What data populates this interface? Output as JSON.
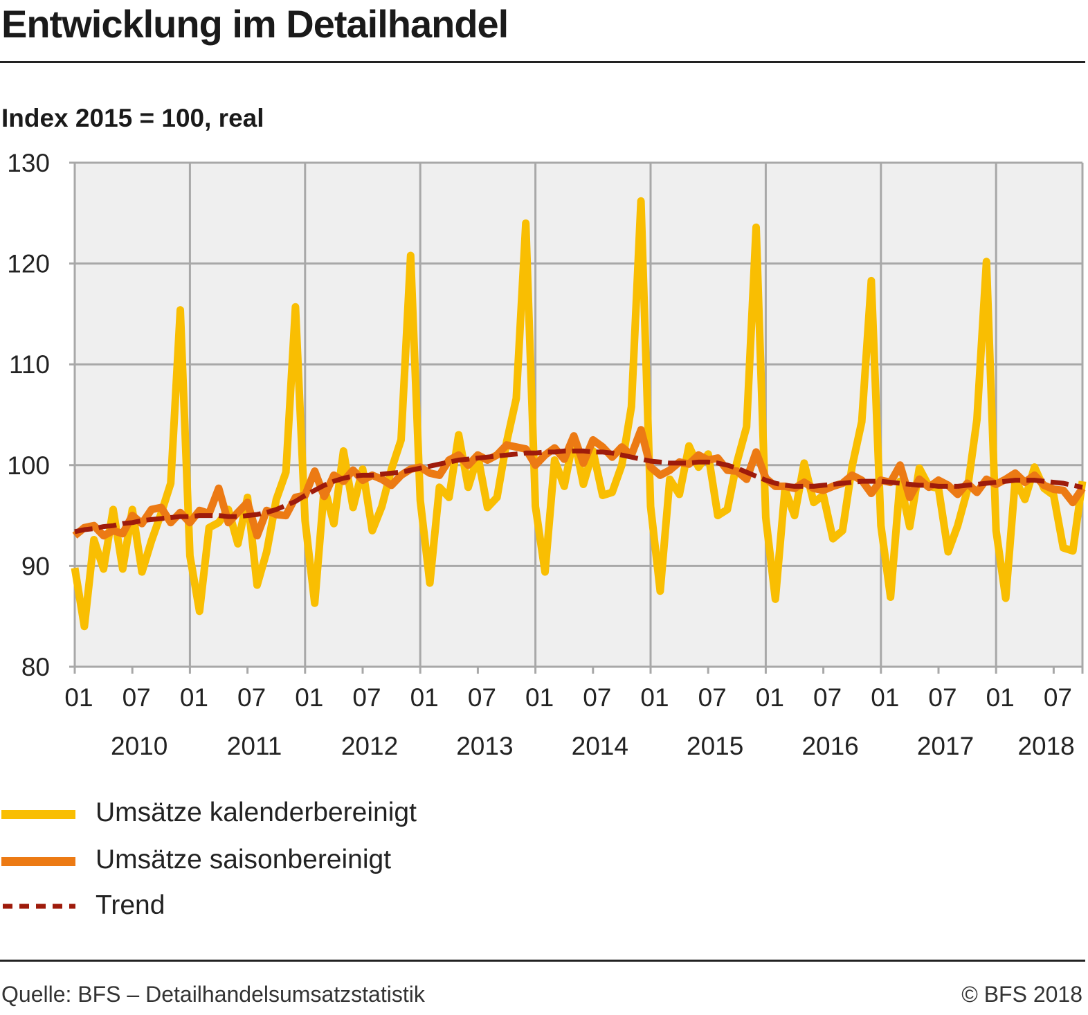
{
  "header": {
    "title": "Entwicklung im Detailhandel",
    "subtitle": "Index 2015 = 100, real"
  },
  "colors": {
    "kalender": "#F9BE02",
    "saison": "#EC7A14",
    "trend": "#9E1B0B",
    "plot_background": "#EFEFEF",
    "grid": "#A8A8A8"
  },
  "chart_data": {
    "type": "line",
    "title": "Entwicklung im Detailhandel",
    "ylabel": "Index 2015 = 100, real",
    "xlabel": "",
    "ylim": [
      80,
      130
    ],
    "yticks": [
      80,
      90,
      100,
      110,
      120,
      130
    ],
    "grid": true,
    "legend_position": "bottom-left",
    "x_tick_labels": [
      "01",
      "07",
      "01",
      "07",
      "01",
      "07",
      "01",
      "07",
      "01",
      "07",
      "01",
      "07",
      "01",
      "07",
      "01",
      "07",
      "01",
      "07"
    ],
    "year_labels": [
      "2010",
      "2011",
      "2012",
      "2013",
      "2014",
      "2015",
      "2016",
      "2017",
      "2018"
    ],
    "x": [
      "2010-01",
      "2010-02",
      "2010-03",
      "2010-04",
      "2010-05",
      "2010-06",
      "2010-07",
      "2010-08",
      "2010-09",
      "2010-10",
      "2010-11",
      "2010-12",
      "2011-01",
      "2011-02",
      "2011-03",
      "2011-04",
      "2011-05",
      "2011-06",
      "2011-07",
      "2011-08",
      "2011-09",
      "2011-10",
      "2011-11",
      "2011-12",
      "2012-01",
      "2012-02",
      "2012-03",
      "2012-04",
      "2012-05",
      "2012-06",
      "2012-07",
      "2012-08",
      "2012-09",
      "2012-10",
      "2012-11",
      "2012-12",
      "2013-01",
      "2013-02",
      "2013-03",
      "2013-04",
      "2013-05",
      "2013-06",
      "2013-07",
      "2013-08",
      "2013-09",
      "2013-10",
      "2013-11",
      "2013-12",
      "2014-01",
      "2014-02",
      "2014-03",
      "2014-04",
      "2014-05",
      "2014-06",
      "2014-07",
      "2014-08",
      "2014-09",
      "2014-10",
      "2014-11",
      "2014-12",
      "2015-01",
      "2015-02",
      "2015-03",
      "2015-04",
      "2015-05",
      "2015-06",
      "2015-07",
      "2015-08",
      "2015-09",
      "2015-10",
      "2015-11",
      "2015-12",
      "2016-01",
      "2016-02",
      "2016-03",
      "2016-04",
      "2016-05",
      "2016-06",
      "2016-07",
      "2016-08",
      "2016-09",
      "2016-10",
      "2016-11",
      "2016-12",
      "2017-01",
      "2017-02",
      "2017-03",
      "2017-04",
      "2017-05",
      "2017-06",
      "2017-07",
      "2017-08",
      "2017-09",
      "2017-10",
      "2017-11",
      "2017-12",
      "2018-01",
      "2018-02",
      "2018-03",
      "2018-04",
      "2018-05",
      "2018-06",
      "2018-07",
      "2018-08",
      "2018-09",
      "2018-10"
    ],
    "series": [
      {
        "name": "Umsätze kalenderbereinigt",
        "color": "#F9BE02",
        "style": "solid",
        "values": [
          89.8,
          84.0,
          92.6,
          89.7,
          95.6,
          89.7,
          95.6,
          89.4,
          92.5,
          95.2,
          98.2,
          115.4,
          91.0,
          85.5,
          93.8,
          94.3,
          95.6,
          92.2,
          96.8,
          88.1,
          91.4,
          96.6,
          99.3,
          115.7,
          94.5,
          86.3,
          97.8,
          94.2,
          101.4,
          95.8,
          99.6,
          93.5,
          95.9,
          99.6,
          102.5,
          120.8,
          96.5,
          88.3,
          97.8,
          96.8,
          103.0,
          97.8,
          100.9,
          95.8,
          96.8,
          102.3,
          106.6,
          124.0,
          95.9,
          89.4,
          100.5,
          97.9,
          102.8,
          98.1,
          101.4,
          97.0,
          97.3,
          100.0,
          105.8,
          126.2,
          95.9,
          87.5,
          98.6,
          97.1,
          101.9,
          99.8,
          101.1,
          95.0,
          95.6,
          100.3,
          103.8,
          123.6,
          94.8,
          86.7,
          97.6,
          95.0,
          100.2,
          96.3,
          97.0,
          92.7,
          93.5,
          99.9,
          104.3,
          118.3,
          94.0,
          86.9,
          98.4,
          93.9,
          99.7,
          97.9,
          97.7,
          91.4,
          94.0,
          97.5,
          104.5,
          120.2,
          93.5,
          86.8,
          98.6,
          96.6,
          99.8,
          97.7,
          97.0,
          91.8,
          91.5,
          98.4
        ]
      },
      {
        "name": "Umsätze saisonbereinigt",
        "color": "#EC7A14",
        "style": "solid",
        "values": [
          93.0,
          93.8,
          94.0,
          93.0,
          93.5,
          93.2,
          95.0,
          94.2,
          95.6,
          95.8,
          94.3,
          95.3,
          94.3,
          95.5,
          95.2,
          97.7,
          94.3,
          95.3,
          96.3,
          93.0,
          95.5,
          95.1,
          95.0,
          96.8,
          97.0,
          99.4,
          96.9,
          99.0,
          98.4,
          99.5,
          98.5,
          99.0,
          98.6,
          98.0,
          99.0,
          99.6,
          99.8,
          99.2,
          99.0,
          100.5,
          101.0,
          100.0,
          101.0,
          100.5,
          101.0,
          102.0,
          101.8,
          101.6,
          100.0,
          101.0,
          101.7,
          100.6,
          102.9,
          100.2,
          102.5,
          101.8,
          100.8,
          101.8,
          101.0,
          103.5,
          99.8,
          99.0,
          99.5,
          100.3,
          100.1,
          101.0,
          100.5,
          100.7,
          99.5,
          99.4,
          98.6,
          101.3,
          98.7,
          97.9,
          97.9,
          97.7,
          98.3,
          97.7,
          97.5,
          97.9,
          98.2,
          99.0,
          98.5,
          97.2,
          98.5,
          98.3,
          100.0,
          96.8,
          98.6,
          97.8,
          98.5,
          98.0,
          97.1,
          98.2,
          97.3,
          98.6,
          98.1,
          98.6,
          99.2,
          98.3,
          99.0,
          98.0,
          97.6,
          97.5,
          96.3,
          97.7
        ]
      },
      {
        "name": "Trend",
        "color": "#9E1B0B",
        "style": "dashed",
        "values": [
          93.4,
          93.6,
          93.7,
          93.9,
          94.0,
          94.2,
          94.3,
          94.5,
          94.6,
          94.7,
          94.8,
          94.9,
          94.9,
          95.0,
          95.0,
          95.0,
          94.9,
          94.9,
          95.0,
          95.1,
          95.3,
          95.6,
          96.0,
          96.4,
          97.0,
          97.5,
          98.0,
          98.4,
          98.7,
          98.9,
          99.0,
          99.0,
          99.1,
          99.2,
          99.3,
          99.5,
          99.7,
          99.9,
          100.1,
          100.3,
          100.5,
          100.6,
          100.7,
          100.8,
          100.9,
          101.0,
          101.1,
          101.2,
          101.2,
          101.3,
          101.3,
          101.4,
          101.4,
          101.4,
          101.3,
          101.3,
          101.2,
          101.0,
          100.8,
          100.6,
          100.4,
          100.3,
          100.2,
          100.2,
          100.2,
          100.3,
          100.3,
          100.2,
          100.0,
          99.7,
          99.3,
          98.9,
          98.5,
          98.2,
          98.0,
          97.9,
          97.9,
          97.9,
          98.0,
          98.1,
          98.2,
          98.3,
          98.4,
          98.4,
          98.4,
          98.3,
          98.2,
          98.1,
          98.0,
          98.0,
          97.9,
          97.9,
          97.9,
          98.0,
          98.1,
          98.2,
          98.3,
          98.4,
          98.5,
          98.5,
          98.5,
          98.4,
          98.3,
          98.2,
          98.0,
          97.8
        ]
      }
    ]
  },
  "legend": {
    "items": [
      {
        "label": "Umsätze kalenderbereinigt"
      },
      {
        "label": "Umsätze saisonbereinigt"
      },
      {
        "label": "Trend"
      }
    ]
  },
  "footer": {
    "source": "Quelle: BFS – Detailhandelsumsatzstatistik",
    "copyright": "© BFS 2018"
  }
}
